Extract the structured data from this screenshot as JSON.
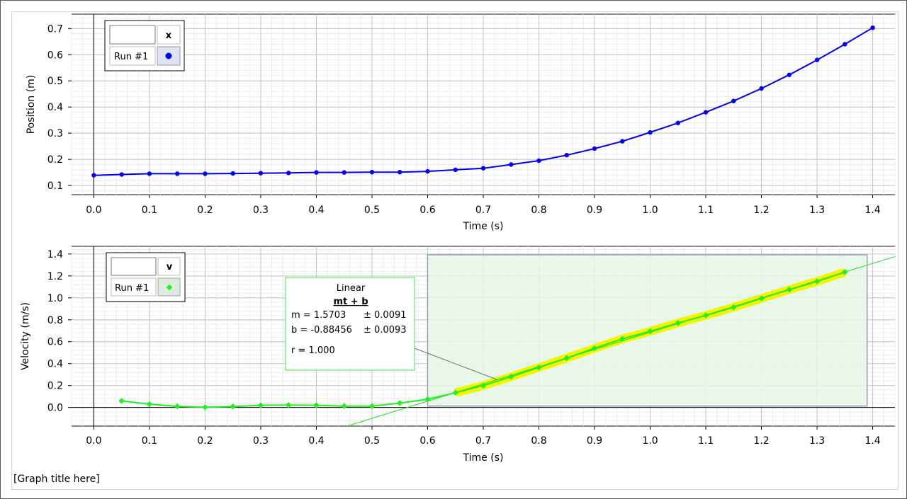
{
  "graph_title": "[Graph title here]",
  "chart_data": [
    {
      "type": "line",
      "xlabel": "Time (s)",
      "ylabel": "Position (m)",
      "xlim": [
        -0.04,
        1.44
      ],
      "ylim": [
        0.065,
        0.755
      ],
      "x_ticks": [
        "0.0",
        "0.1",
        "0.2",
        "0.3",
        "0.4",
        "0.5",
        "0.6",
        "0.7",
        "0.8",
        "0.9",
        "1.0",
        "1.1",
        "1.2",
        "1.3",
        "1.4"
      ],
      "y_ticks": [
        "0.1",
        "0.2",
        "0.3",
        "0.4",
        "0.5",
        "0.6",
        "0.7"
      ],
      "grid": true,
      "legend": {
        "placement": "top-left",
        "header_blank": "",
        "header_label": "x",
        "run_label": "Run #1"
      },
      "series": [
        {
          "name": "Run #1",
          "color": "#0000ee",
          "marker": "circle",
          "x": [
            0.0,
            0.05,
            0.1,
            0.15,
            0.2,
            0.25,
            0.3,
            0.35,
            0.4,
            0.45,
            0.5,
            0.55,
            0.6,
            0.65,
            0.7,
            0.75,
            0.8,
            0.85,
            0.9,
            0.95,
            1.0,
            1.05,
            1.1,
            1.15,
            1.2,
            1.25,
            1.3,
            1.35,
            1.4
          ],
          "y": [
            0.139,
            0.142,
            0.145,
            0.145,
            0.145,
            0.146,
            0.147,
            0.148,
            0.15,
            0.15,
            0.151,
            0.151,
            0.154,
            0.16,
            0.166,
            0.18,
            0.195,
            0.216,
            0.241,
            0.269,
            0.303,
            0.339,
            0.38,
            0.423,
            0.471,
            0.523,
            0.58,
            0.64,
            0.703
          ]
        }
      ]
    },
    {
      "type": "line",
      "xlabel": "Time (s)",
      "ylabel": "Velocity (m/s)",
      "xlim": [
        -0.04,
        1.44
      ],
      "ylim": [
        -0.17,
        1.47
      ],
      "x_ticks": [
        "0.0",
        "0.1",
        "0.2",
        "0.3",
        "0.4",
        "0.5",
        "0.6",
        "0.7",
        "0.8",
        "0.9",
        "1.0",
        "1.1",
        "1.2",
        "1.3",
        "1.4"
      ],
      "y_ticks": [
        "0.0",
        "0.2",
        "0.4",
        "0.6",
        "0.8",
        "1.0",
        "1.2",
        "1.4"
      ],
      "grid": true,
      "legend": {
        "placement": "top-left",
        "header_blank": "",
        "header_label": "v",
        "run_label": "Run #1"
      },
      "series": [
        {
          "name": "Run #1",
          "color": "#22ee22",
          "marker": "diamond",
          "x": [
            0.05,
            0.1,
            0.15,
            0.2,
            0.25,
            0.3,
            0.35,
            0.4,
            0.45,
            0.5,
            0.55,
            0.6,
            0.65,
            0.7,
            0.75,
            0.8,
            0.85,
            0.9,
            0.95,
            1.0,
            1.05,
            1.1,
            1.15,
            1.2,
            1.25,
            1.3,
            1.35
          ],
          "y": [
            0.06,
            0.03,
            0.01,
            0.002,
            0.008,
            0.02,
            0.022,
            0.02,
            0.012,
            0.012,
            0.04,
            0.075,
            0.135,
            0.2,
            0.28,
            0.365,
            0.45,
            0.54,
            0.625,
            0.695,
            0.77,
            0.84,
            0.915,
            0.995,
            1.075,
            1.15,
            1.235
          ]
        }
      ],
      "selection_range": [
        0.6,
        1.39
      ],
      "fit": {
        "title": "Linear",
        "equation": "mt + b",
        "m_label": "m = 1.5703",
        "m_error": "± 0.0091",
        "b_label": "b  = -0.88456",
        "b_error": "± 0.0093",
        "r_label": "r = 1.000",
        "m": 1.5703,
        "b": -0.88456,
        "fit_x_range": [
          0.65,
          1.35
        ]
      }
    }
  ]
}
